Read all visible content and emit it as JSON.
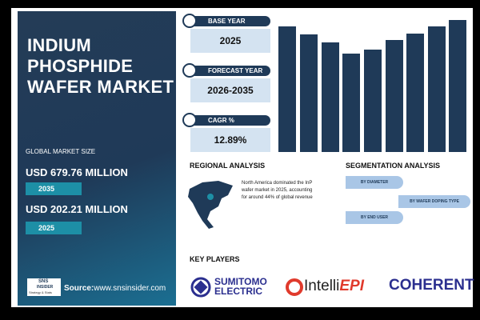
{
  "left_panel": {
    "title_lines": [
      "INDIUM",
      "PHOSPHIDE",
      "WAFER MARKET"
    ],
    "market_size_label": "GLOBAL MARKET SIZE",
    "values": [
      {
        "amount": "USD 679.76 MILLION",
        "year": "2035"
      },
      {
        "amount": "USD 202.21 MILLION",
        "year": "2025"
      }
    ],
    "logo": {
      "top": "SNS",
      "bottom": "INSIDER",
      "tagline": "Strategy & Stats"
    },
    "source_label": "Source:",
    "source": "www.snsinsider.com"
  },
  "cards": [
    {
      "label": "BASE YEAR",
      "value": "2025"
    },
    {
      "label": "FORECAST YEAR",
      "value": "2026-2035"
    },
    {
      "label": "CAGR %",
      "value": "12.89%"
    }
  ],
  "regional": {
    "title": "REGIONAL ANALYSIS",
    "text": "North America dominated the InP wafer market in 2025, accounting for around 44% of global revenue"
  },
  "segmentation": {
    "title": "SEGMENTATION ANALYSIS",
    "items": [
      "BY DIAMETER",
      "BY WAFER DOPING TYPE",
      "BY END USER"
    ]
  },
  "key_players": {
    "title": "KEY PLAYERS",
    "players": [
      {
        "line1": "SUMITOMO",
        "line2": "ELECTRIC"
      },
      {
        "line1": "Intelli",
        "line2": "EPI"
      },
      {
        "line1": "COHERENT"
      }
    ]
  }
}
